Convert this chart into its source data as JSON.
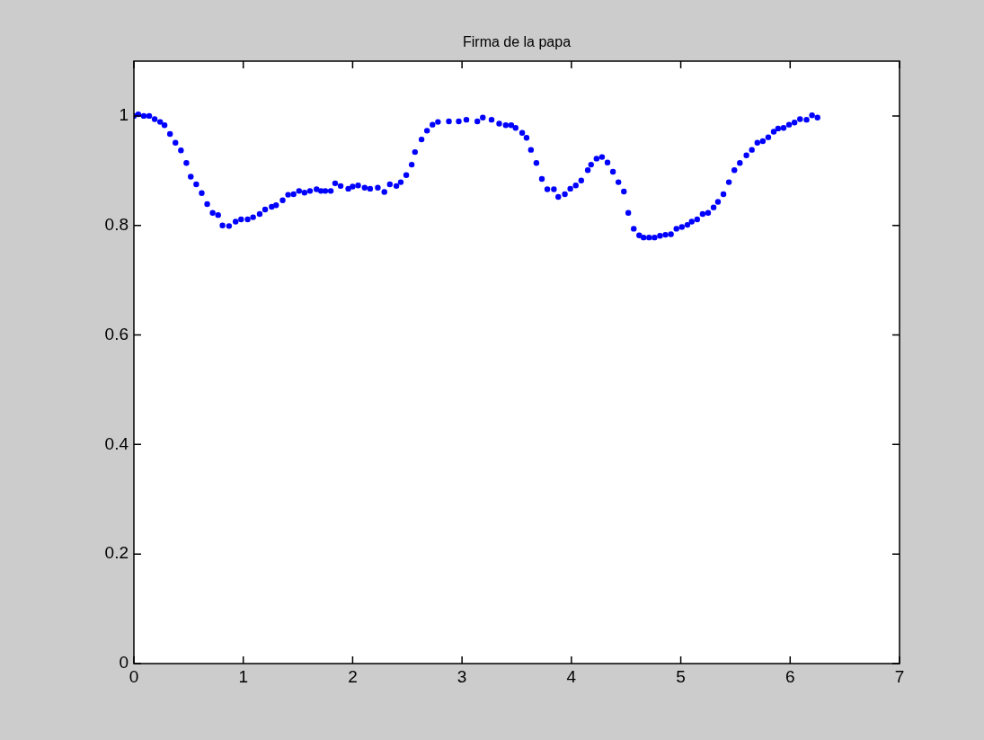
{
  "chart_data": {
    "type": "scatter",
    "title": "Firma de la papa",
    "x": [
      0,
      0.04,
      0.09,
      0.14,
      0.19,
      0.24,
      0.28,
      0.33,
      0.38,
      0.43,
      0.48,
      0.52,
      0.57,
      0.62,
      0.67,
      0.72,
      0.77,
      0.81,
      0.87,
      0.93,
      0.98,
      1.04,
      1.09,
      1.15,
      1.2,
      1.26,
      1.3,
      1.36,
      1.41,
      1.46,
      1.51,
      1.56,
      1.61,
      1.67,
      1.71,
      1.75,
      1.8,
      1.84,
      1.89,
      1.96,
      2.0,
      2.05,
      2.11,
      2.16,
      2.23,
      2.29,
      2.34,
      2.4,
      2.44,
      2.49,
      2.54,
      2.57,
      2.63,
      2.68,
      2.73,
      2.78,
      2.88,
      2.97,
      3.04,
      3.14,
      3.19,
      3.27,
      3.34,
      3.4,
      3.45,
      3.49,
      3.55,
      3.59,
      3.63,
      3.68,
      3.73,
      3.78,
      3.84,
      3.88,
      3.94,
      3.99,
      4.04,
      4.09,
      4.15,
      4.18,
      4.23,
      4.28,
      4.33,
      4.38,
      4.43,
      4.48,
      4.52,
      4.57,
      4.62,
      4.66,
      4.71,
      4.76,
      4.81,
      4.86,
      4.91,
      4.96,
      5.01,
      5.06,
      5.1,
      5.15,
      5.2,
      5.25,
      5.3,
      5.34,
      5.39,
      5.44,
      5.49,
      5.54,
      5.6,
      5.65,
      5.7,
      5.75,
      5.8,
      5.85,
      5.89,
      5.94,
      5.99,
      6.04,
      6.09,
      6.15,
      6.2,
      6.25
    ],
    "values": [
      1.0,
      1.003,
      1.0,
      1.0,
      0.994,
      0.989,
      0.983,
      0.967,
      0.951,
      0.937,
      0.914,
      0.889,
      0.875,
      0.859,
      0.839,
      0.823,
      0.819,
      0.8,
      0.799,
      0.807,
      0.811,
      0.811,
      0.815,
      0.821,
      0.829,
      0.834,
      0.837,
      0.846,
      0.856,
      0.857,
      0.863,
      0.86,
      0.863,
      0.866,
      0.863,
      0.863,
      0.863,
      0.877,
      0.872,
      0.867,
      0.871,
      0.873,
      0.869,
      0.867,
      0.869,
      0.861,
      0.875,
      0.872,
      0.879,
      0.892,
      0.911,
      0.934,
      0.957,
      0.973,
      0.984,
      0.989,
      0.99,
      0.99,
      0.993,
      0.99,
      0.997,
      0.993,
      0.986,
      0.983,
      0.983,
      0.978,
      0.969,
      0.96,
      0.938,
      0.914,
      0.885,
      0.866,
      0.866,
      0.852,
      0.857,
      0.867,
      0.873,
      0.882,
      0.901,
      0.911,
      0.922,
      0.925,
      0.915,
      0.898,
      0.879,
      0.862,
      0.823,
      0.794,
      0.782,
      0.778,
      0.778,
      0.778,
      0.781,
      0.783,
      0.784,
      0.794,
      0.797,
      0.801,
      0.807,
      0.811,
      0.821,
      0.823,
      0.833,
      0.843,
      0.857,
      0.879,
      0.901,
      0.914,
      0.928,
      0.938,
      0.951,
      0.954,
      0.961,
      0.971,
      0.977,
      0.978,
      0.984,
      0.988,
      0.994,
      0.993,
      1.001,
      0.997
    ],
    "color": "#0000ff",
    "marker": "circle",
    "xlim": [
      0,
      7
    ],
    "xticks": [
      0,
      1,
      2,
      3,
      4,
      5,
      6,
      7
    ],
    "ylim": [
      0,
      1.1
    ],
    "yticks": [
      0,
      0.2,
      0.4,
      0.6,
      0.8,
      1
    ]
  }
}
